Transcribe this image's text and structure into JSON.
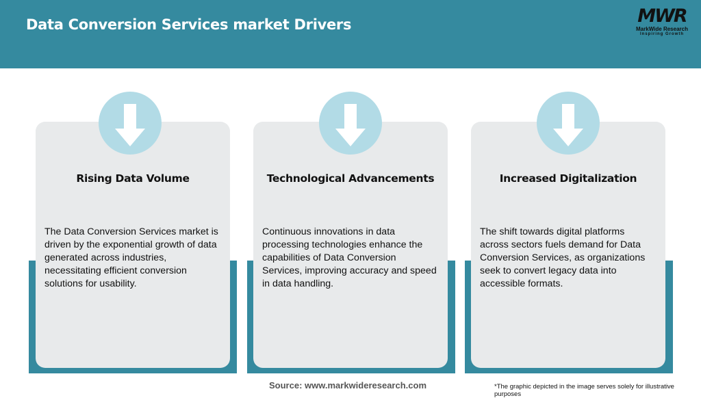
{
  "header": {
    "title": "Data Conversion Services market Drivers",
    "logo": {
      "mark": "MWR",
      "name": "MarkWide Research",
      "tagline": "Inspiring Growth"
    }
  },
  "colors": {
    "header": "#358a9f",
    "card": "#e8eaeb",
    "circle": "#b2dbe6"
  },
  "cards": [
    {
      "icon": "arrow-down-icon",
      "title": "Rising Data Volume",
      "body": "The Data Conversion Services market is driven by the exponential growth of data generated across industries, necessitating efficient conversion solutions for usability."
    },
    {
      "icon": "arrow-down-icon",
      "title": "Technological Advancements",
      "body": "Continuous innovations in data processing technologies enhance the capabilities of Data Conversion Services, improving accuracy and speed in data handling."
    },
    {
      "icon": "arrow-down-icon",
      "title": "Increased Digitalization",
      "body": "The shift towards digital platforms across sectors fuels demand for Data Conversion Services, as organizations seek to convert legacy data into accessible formats."
    }
  ],
  "footer": {
    "source": "Source: www.markwideresearch.com",
    "note": "*The graphic depicted in the image serves solely for illustrative purposes"
  }
}
